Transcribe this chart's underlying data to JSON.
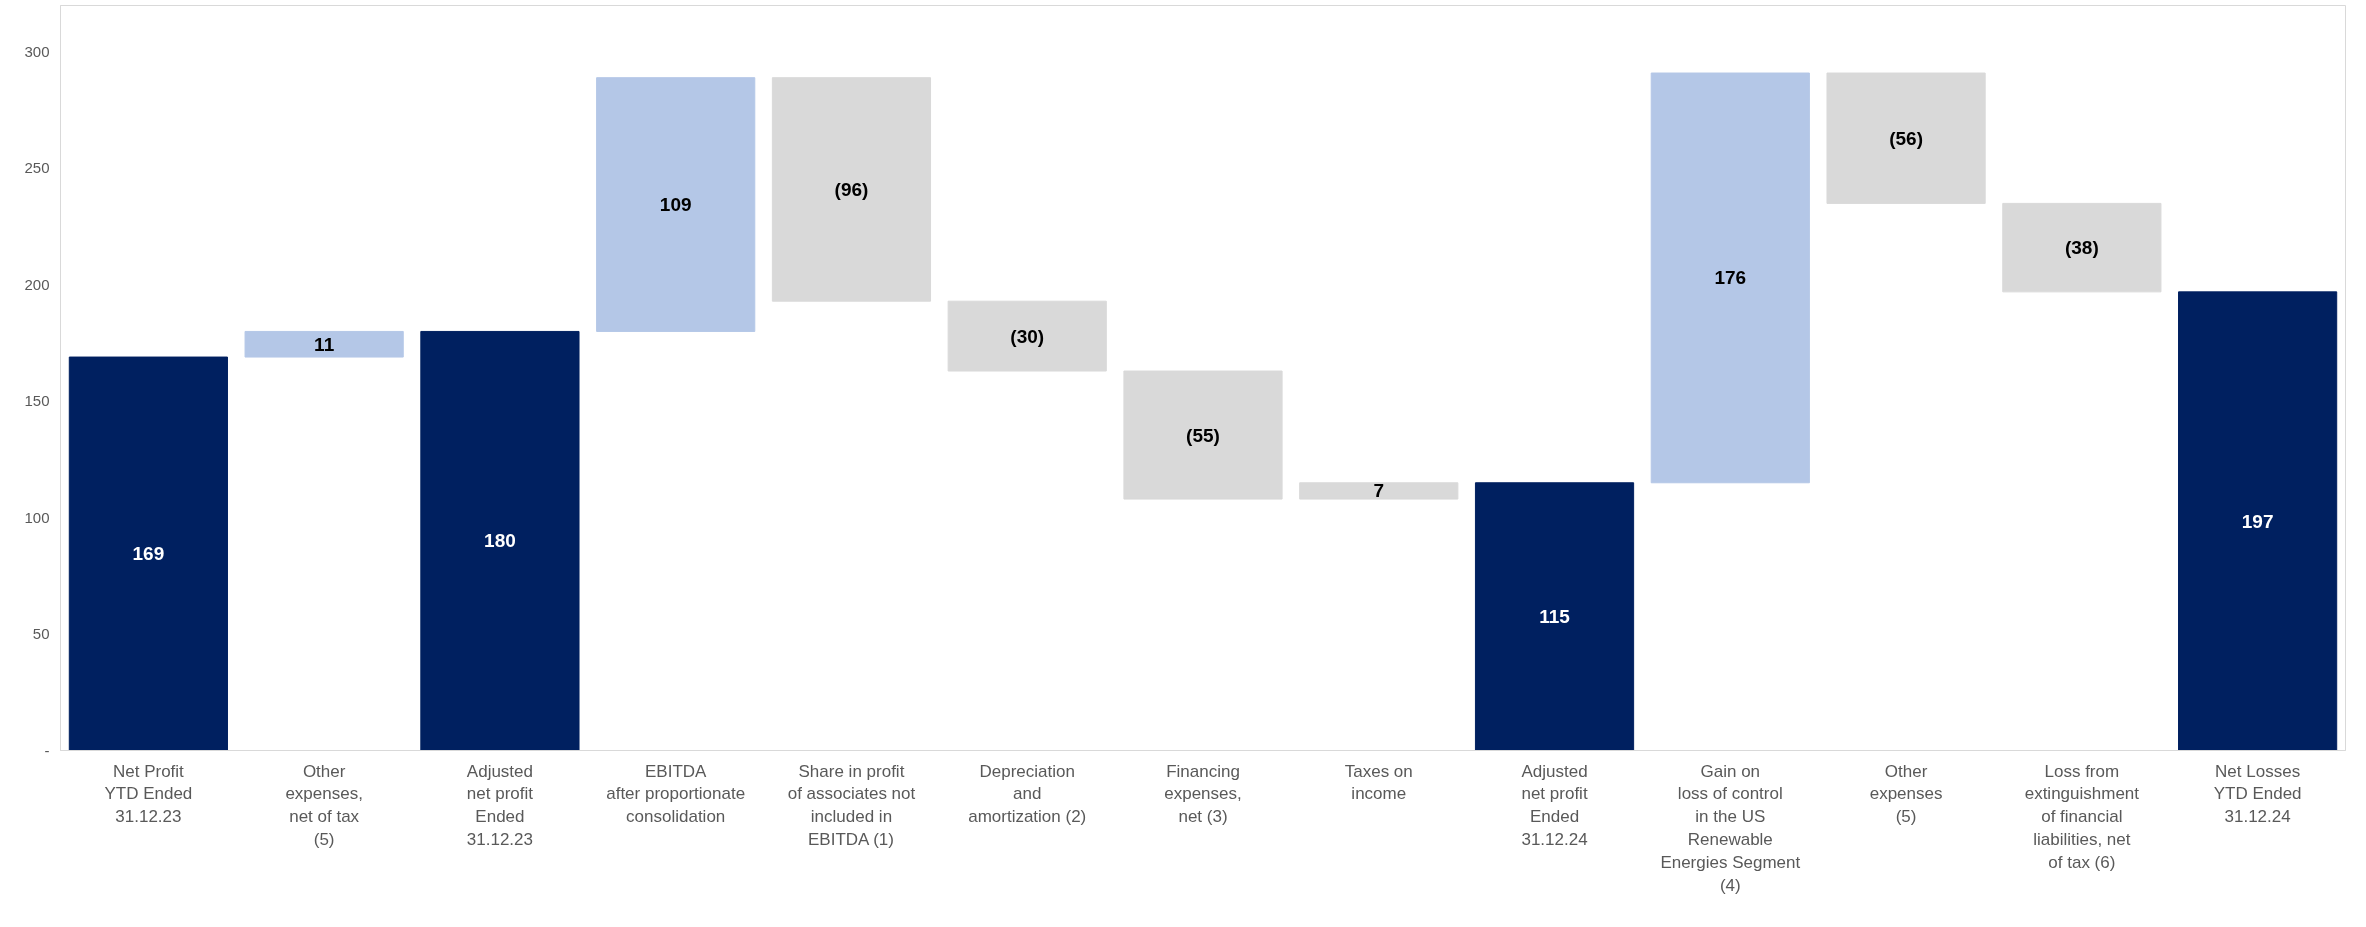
{
  "chart_data": {
    "type": "bar",
    "categories": [
      "Net Profit\nYTD Ended\n31.12.23",
      "Other\nexpenses,\nnet of tax\n(5)",
      "Adjusted\nnet profit\nEnded\n31.12.23",
      "EBITDA\nafter proportionate\nconsolidation",
      "Share in profit\nof associates not\nincluded in\nEBITDA (1)",
      "Depreciation\nand\namortization (2)",
      "Financing\nexpenses,\nnet (3)",
      "Taxes on\nincome",
      "Adjusted\nnet profit\nEnded\n31.12.24",
      "Gain on\nloss of control\nin the US\nRenewable\nEnergies Segment\n(4)",
      "Other\nexpenses\n(5)",
      "Loss from\nextinguishment\nof financial\nliabilities, net\nof tax (6)",
      "Net Losses\nYTD Ended\n31.12.24"
    ],
    "values": [
      169,
      11,
      180,
      109,
      -96,
      -30,
      -55,
      7,
      115,
      176,
      -56,
      -38,
      197
    ],
    "base": [
      0,
      169,
      0,
      180,
      289,
      193,
      163,
      108,
      0,
      115,
      291,
      235,
      0
    ],
    "colors": [
      "#002060",
      "#b4c7e7",
      "#002060",
      "#b4c7e7",
      "#d9d9d9",
      "#d9d9d9",
      "#d9d9d9",
      "#d9d9d9",
      "#002060",
      "#b4c7e7",
      "#d9d9d9",
      "#d9d9d9",
      "#002060"
    ],
    "value_labels": [
      "169",
      "11",
      "180",
      "109",
      "(96)",
      "(30)",
      "(55)",
      "7",
      "115",
      "176",
      "(56)",
      "(38)",
      "197"
    ],
    "ylim": [
      0,
      320
    ],
    "yticks": [
      {
        "value": 0,
        "label": "-"
      },
      50,
      100,
      150,
      200,
      250,
      300
    ],
    "grid": false
  }
}
